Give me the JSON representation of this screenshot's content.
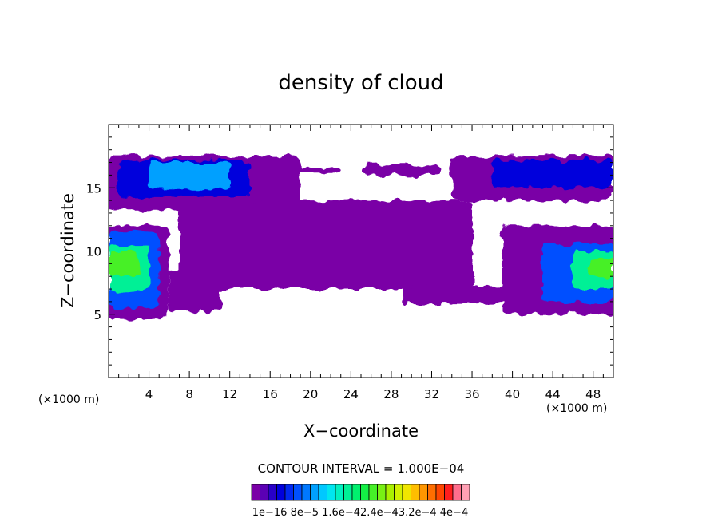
{
  "chart_data": {
    "type": "heatmap",
    "title": "density of cloud",
    "xlabel": "X−coordinate",
    "ylabel": "Z−coordinate",
    "x_unit": "(×1000 m)",
    "z_unit": "(×1000 m)",
    "xlim": [
      0,
      50
    ],
    "ylim": [
      0,
      20
    ],
    "x_ticks": [
      4,
      8,
      12,
      16,
      20,
      24,
      28,
      32,
      36,
      40,
      44,
      48
    ],
    "y_ticks": [
      5,
      10,
      15
    ],
    "contour_interval_text": "CONTOUR INTERVAL = 1.000E−04",
    "colorbar": {
      "labels": [
        "1e−16",
        "8e−5",
        "1.6e−4",
        "2.4e−4",
        "3.2e−4",
        "4e−4"
      ],
      "label_text": "1e−16 8e−5 1.6e−42.4e−43.2e−4 4e−4",
      "levels": 25,
      "colors": [
        "#7a00a6",
        "#5b00b4",
        "#2800c8",
        "#0000dc",
        "#0028f0",
        "#0050ff",
        "#0078ff",
        "#00a0ff",
        "#00c8ff",
        "#00e6f0",
        "#00f0c0",
        "#00f096",
        "#00f06e",
        "#14f046",
        "#46f028",
        "#78f014",
        "#aaf000",
        "#d2f000",
        "#f0e600",
        "#ffbe00",
        "#ff9600",
        "#ff6e00",
        "#ff4600",
        "#ff1e1e",
        "#ff6e8c",
        "#ffa0b4"
      ]
    },
    "regions": [
      {
        "name": "upper-left-anvil",
        "x": [
          0,
          19
        ],
        "z": [
          13.2,
          17.5
        ],
        "level": 0
      },
      {
        "name": "upper-left-anvil-dense",
        "x": [
          1,
          14
        ],
        "z": [
          14.2,
          17.2
        ],
        "level": 3
      },
      {
        "name": "upper-left-anvil-core",
        "x": [
          4,
          12
        ],
        "z": [
          15,
          17
        ],
        "level": 7
      },
      {
        "name": "left-cell",
        "x": [
          0,
          6
        ],
        "z": [
          4.6,
          12
        ],
        "level": 0
      },
      {
        "name": "left-cell-mid",
        "x": [
          0,
          5
        ],
        "z": [
          5.5,
          11.5
        ],
        "level": 5
      },
      {
        "name": "left-cell-core",
        "x": [
          0,
          4
        ],
        "z": [
          6.8,
          10.5
        ],
        "level": 11
      },
      {
        "name": "left-cell-peak",
        "x": [
          0,
          3
        ],
        "z": [
          8,
          10
        ],
        "level": 14
      },
      {
        "name": "left-lower-layer",
        "x": [
          6,
          11
        ],
        "z": [
          5.2,
          8.5
        ],
        "level": 0
      },
      {
        "name": "central-layer",
        "x": [
          7,
          36
        ],
        "z": [
          7,
          14
        ],
        "level": 0
      },
      {
        "name": "central-upper-patch",
        "x": [
          16,
          23
        ],
        "z": [
          16.2,
          16.6
        ],
        "level": 0
      },
      {
        "name": "central-top-patch",
        "x": [
          25,
          33
        ],
        "z": [
          16,
          16.8
        ],
        "level": 0
      },
      {
        "name": "upper-right-anvil",
        "x": [
          34,
          50
        ],
        "z": [
          14,
          17.5
        ],
        "level": 0
      },
      {
        "name": "upper-right-anvil-dense",
        "x": [
          38,
          50
        ],
        "z": [
          15,
          17.2
        ],
        "level": 3
      },
      {
        "name": "right-lower-layer",
        "x": [
          29,
          40
        ],
        "z": [
          5.8,
          7.2
        ],
        "level": 0
      },
      {
        "name": "right-cell",
        "x": [
          39,
          50
        ],
        "z": [
          5,
          12
        ],
        "level": 0
      },
      {
        "name": "right-cell-mid",
        "x": [
          43,
          50
        ],
        "z": [
          6,
          10.5
        ],
        "level": 5
      },
      {
        "name": "right-cell-core",
        "x": [
          46,
          50
        ],
        "z": [
          7,
          10
        ],
        "level": 11
      },
      {
        "name": "right-cell-peak",
        "x": [
          47.5,
          50
        ],
        "z": [
          8,
          9.5
        ],
        "level": 14
      }
    ]
  }
}
